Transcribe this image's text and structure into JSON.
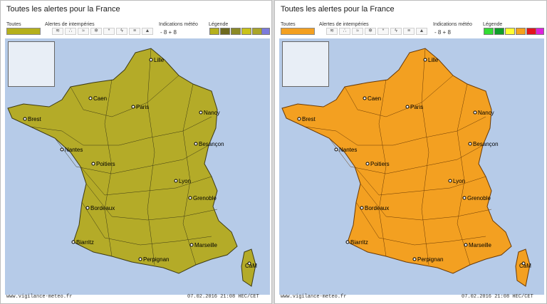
{
  "panels": [
    {
      "id": "left",
      "title": "Toutes les alertes pour la France",
      "header": {
        "toutes": "Toutes",
        "alertes": "Alertes de intempéries",
        "indications": "Indications météo",
        "legende": "Légende"
      },
      "meteo_values": "- 8 + 8",
      "legend_colors": [
        "#b5b01c",
        "#6e6a1f",
        "#8b8a26",
        "#c9c219",
        "#aaa52a",
        "#7b7bdc"
      ],
      "land_color": "#b4ab28",
      "border_color": "#3d3a14",
      "footer_site": "www.vigilance-meteo.fr",
      "footer_time": "07.02.2016 21:08 HEC/CET"
    },
    {
      "id": "right",
      "title": "Toutes les alertes pour la France",
      "header": {
        "toutes": "Toutes",
        "alertes": "Alertes de intempéries",
        "indications": "Indications météo",
        "legende": "Légende"
      },
      "meteo_values": "- 8 + 8",
      "legend_colors": [
        "#33dd33",
        "#0f9d2a",
        "#ffff33",
        "#f5a21c",
        "#e3141c",
        "#dd22dd"
      ],
      "land_color": "#f3a021",
      "border_color": "#6a3a05",
      "footer_site": "www.vigilance-meteo.fr",
      "footer_time": "07.02.2016 21:08 HEC/CET"
    }
  ],
  "cities": [
    "Lille",
    "Caen",
    "Paris",
    "Nancy",
    "Brest",
    "Nantes",
    "Besançon",
    "Poitiers",
    "Lyon",
    "Grenoble",
    "Bordeaux",
    "Marseille",
    "Biarritz",
    "Perpignan",
    "CaM"
  ]
}
